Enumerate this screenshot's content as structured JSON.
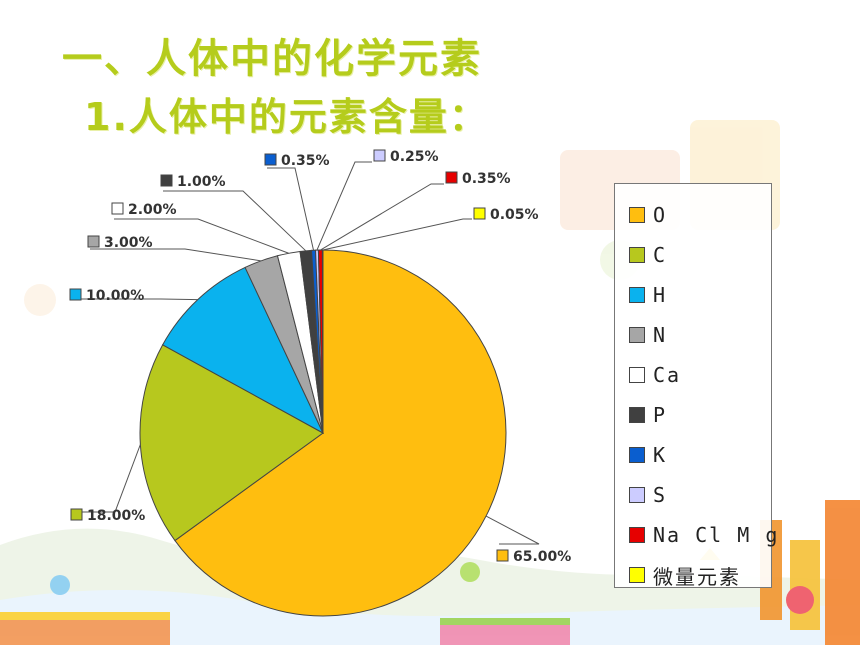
{
  "title_line1": "一、人体中的化学元素",
  "title_line2": "1.人体中的元素含量：",
  "chart_data": {
    "type": "pie",
    "series": [
      {
        "label": "O",
        "value": 65.0,
        "display": "65.00%",
        "color": "#FFBE0F"
      },
      {
        "label": "C",
        "value": 18.0,
        "display": "18.00%",
        "color": "#B7C81E"
      },
      {
        "label": "H",
        "value": 10.0,
        "display": "10.00%",
        "color": "#0AB2EE"
      },
      {
        "label": "N",
        "value": 3.0,
        "display": "3.00%",
        "color": "#A6A6A6"
      },
      {
        "label": "Ca",
        "value": 2.0,
        "display": "2.00%",
        "color": "#FFFFFF"
      },
      {
        "label": "P",
        "value": 1.0,
        "display": "1.00%",
        "color": "#404040"
      },
      {
        "label": "K",
        "value": 0.35,
        "display": "0.35%",
        "color": "#0A5ECF"
      },
      {
        "label": "S",
        "value": 0.25,
        "display": "0.25%",
        "color": "#CCCCFF"
      },
      {
        "label": "Na Cl M g",
        "value": 0.35,
        "display": "0.35%",
        "color": "#E60000"
      },
      {
        "label": "微量元素",
        "value": 0.05,
        "display": "0.05%",
        "color": "#FFFF00"
      }
    ],
    "legend_position": "right"
  }
}
